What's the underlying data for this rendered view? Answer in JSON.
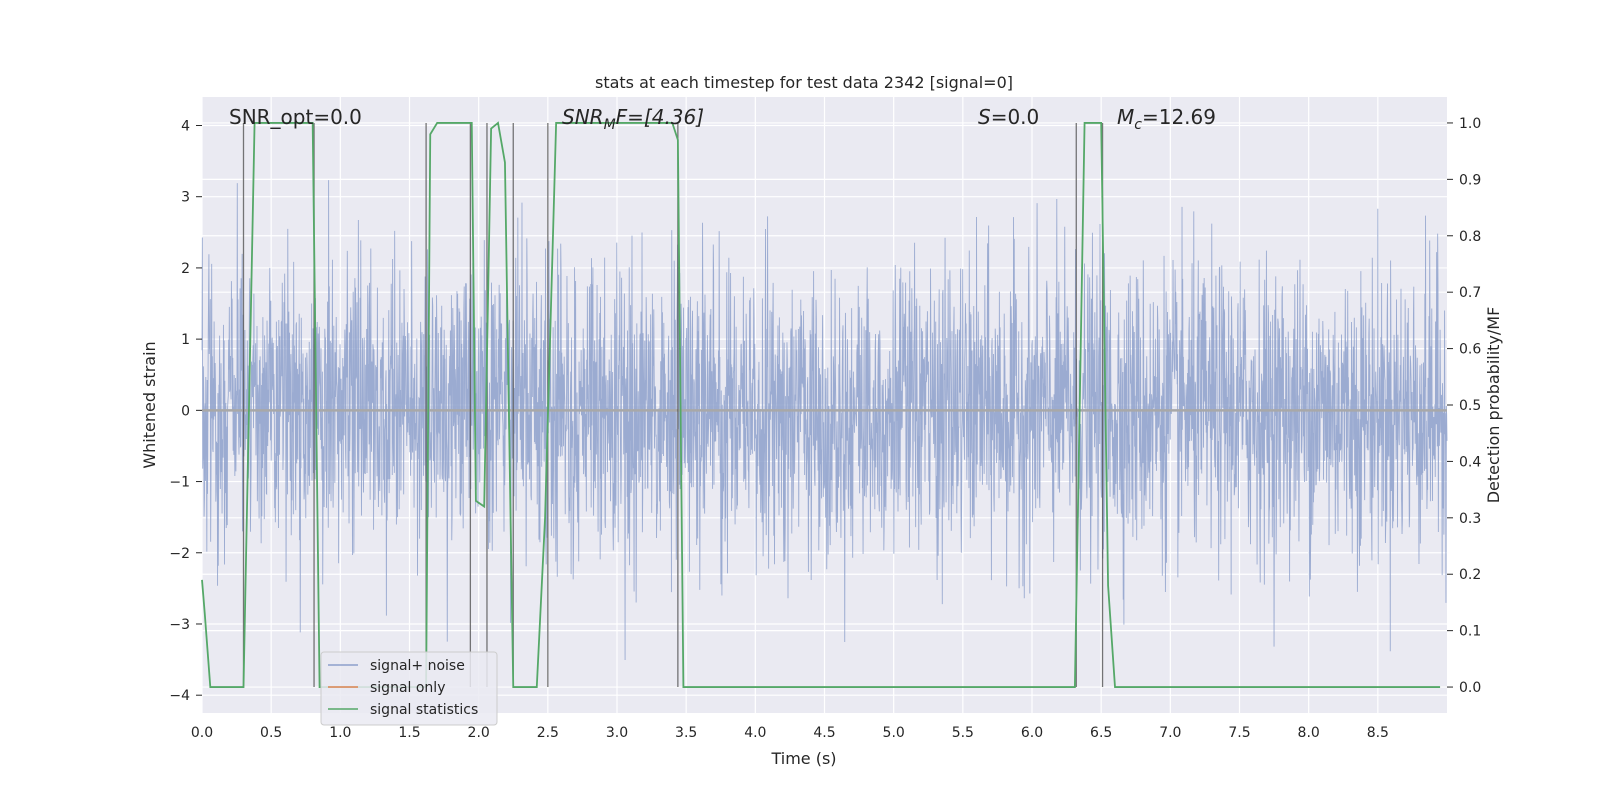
{
  "chart_data": {
    "type": "line",
    "title": "stats at each timestep for test data 2342 [signal=0]",
    "xlabel": "Time (s)",
    "ylabel": "Whitened strain",
    "y2label": "Detection probability/MF",
    "xlim": [
      0.0,
      9.0
    ],
    "ylim": [
      -4.25,
      4.4
    ],
    "y2lim": [
      -0.046,
      1.046
    ],
    "xticks": [
      "0.0",
      "0.5",
      "1.0",
      "1.5",
      "2.0",
      "2.5",
      "3.0",
      "3.5",
      "4.0",
      "4.5",
      "5.0",
      "5.5",
      "6.0",
      "6.5",
      "7.0",
      "7.5",
      "8.0",
      "8.5"
    ],
    "yticks": [
      "4",
      "3",
      "2",
      "1",
      "0",
      "−1",
      "−2",
      "−3",
      "−4"
    ],
    "y2ticks": [
      "1.0",
      "0.9",
      "0.8",
      "0.7",
      "0.6",
      "0.5",
      "0.4",
      "0.3",
      "0.2",
      "0.1",
      "0.0"
    ],
    "grid": true,
    "legend_position": "lower-left",
    "annotations": {
      "snr_opt": "SNR_opt=0.0",
      "snr_mf_main": "SNR",
      "snr_mf_sub": "M",
      "snr_mf_rest": "F=[4.36]",
      "s_main": "S",
      "s_rest": "=0.0",
      "mc_main": "M",
      "mc_sub": "c",
      "mc_rest": "=12.69"
    },
    "series": [
      {
        "name": "signal+ noise",
        "color": "#8da0cb",
        "axis": "left",
        "noise_amplitude_sigma": 1.0,
        "peak_max": 4.0,
        "peak_min": -3.9
      },
      {
        "name": "signal only",
        "color": "#dd8452",
        "axis": "left",
        "x": [
          0.0,
          9.0
        ],
        "y": [
          0.0,
          0.0
        ]
      },
      {
        "name": "signal statistics",
        "color": "#55a868",
        "axis": "right",
        "x": [
          0.0,
          0.02,
          0.06,
          0.15,
          0.3,
          0.38,
          0.5,
          0.8,
          0.85,
          1.62,
          1.65,
          1.7,
          1.75,
          1.95,
          1.98,
          2.04,
          2.09,
          2.14,
          2.19,
          2.25,
          2.31,
          2.42,
          2.48,
          2.56,
          2.6,
          3.0,
          3.4,
          3.44,
          3.48,
          3.6,
          4.0,
          5.0,
          6.0,
          6.31,
          6.38,
          6.45,
          6.5,
          6.55,
          6.6,
          6.68,
          7.0,
          8.0,
          8.95
        ],
        "y": [
          0.19,
          0.13,
          0.0,
          0.0,
          0.0,
          1.0,
          1.0,
          1.0,
          0.0,
          0.0,
          0.98,
          1.0,
          1.0,
          1.0,
          0.33,
          0.32,
          0.99,
          1.0,
          0.93,
          0.0,
          0.0,
          0.0,
          0.3,
          1.0,
          1.0,
          1.0,
          1.0,
          0.97,
          0.0,
          0.0,
          0.0,
          0.0,
          0.0,
          0.0,
          1.0,
          1.0,
          1.0,
          0.18,
          0.0,
          0.0,
          0.0,
          0.0,
          0.0
        ]
      }
    ],
    "threshold_crossings": [
      0.3,
      0.81,
      1.62,
      1.94,
      2.06,
      2.25,
      2.5,
      3.44,
      6.32,
      6.51
    ]
  }
}
